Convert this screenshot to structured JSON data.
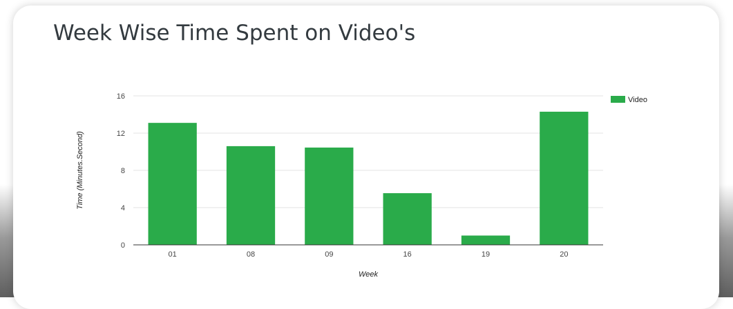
{
  "card": {
    "title": "Week Wise Time Spent on Video's"
  },
  "colors": {
    "bar": "#2aab4a",
    "gridline": "#e3e3e3",
    "baseline": "#333333"
  },
  "chart_data": {
    "type": "bar",
    "title": "Week Wise Time Spent on Video's",
    "xlabel": "Week",
    "ylabel": "Time (Minutes.Second)",
    "categories": [
      "01",
      "08",
      "09",
      "16",
      "19",
      "20"
    ],
    "series": [
      {
        "name": "Video",
        "values": [
          13.1,
          10.6,
          10.45,
          5.55,
          1.0,
          14.3
        ]
      }
    ],
    "ylim": [
      0,
      16
    ],
    "yticks": [
      "0",
      "4",
      "8",
      "12",
      "16"
    ],
    "grid": true,
    "legend_position": "right"
  }
}
